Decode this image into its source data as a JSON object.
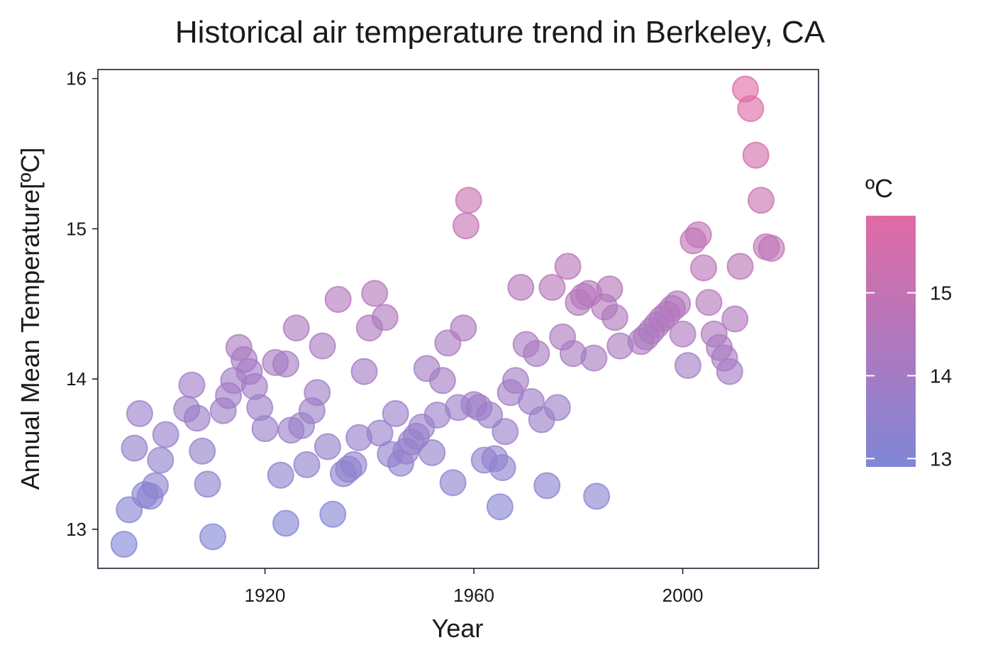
{
  "chart_data": {
    "type": "scatter",
    "title": "Historical air temperature trend in Berkeley, CA",
    "xlabel": "Year",
    "ylabel": "Annual Mean Temperature[ºC]",
    "xlim": [
      1888,
      2026
    ],
    "ylim": [
      12.74,
      16.06
    ],
    "x_ticks": [
      1920,
      1960,
      2000
    ],
    "y_ticks": [
      13,
      14,
      15,
      16
    ],
    "grid": false,
    "color_scale": {
      "title": "ºC",
      "min": 12.9,
      "max": 15.93,
      "low_color": "#7f86d6",
      "high_color": "#e06aa4",
      "ticks": [
        13,
        14,
        15
      ],
      "legend_position": "right"
    },
    "points": [
      {
        "x": 1893,
        "y": 12.9
      },
      {
        "x": 1894,
        "y": 13.13
      },
      {
        "x": 1895,
        "y": 13.54
      },
      {
        "x": 1896,
        "y": 13.77
      },
      {
        "x": 1897,
        "y": 13.23
      },
      {
        "x": 1898,
        "y": 13.22
      },
      {
        "x": 1899,
        "y": 13.29
      },
      {
        "x": 1900,
        "y": 13.46
      },
      {
        "x": 1901,
        "y": 13.63
      },
      {
        "x": 1905,
        "y": 13.8
      },
      {
        "x": 1906,
        "y": 13.96
      },
      {
        "x": 1907,
        "y": 13.74
      },
      {
        "x": 1908,
        "y": 13.52
      },
      {
        "x": 1909,
        "y": 13.3
      },
      {
        "x": 1910,
        "y": 12.95
      },
      {
        "x": 1912,
        "y": 13.79
      },
      {
        "x": 1913,
        "y": 13.89
      },
      {
        "x": 1914,
        "y": 13.99
      },
      {
        "x": 1915,
        "y": 14.21
      },
      {
        "x": 1916,
        "y": 14.13
      },
      {
        "x": 1917,
        "y": 14.05
      },
      {
        "x": 1918,
        "y": 13.95
      },
      {
        "x": 1919,
        "y": 13.81
      },
      {
        "x": 1920,
        "y": 13.67
      },
      {
        "x": 1922,
        "y": 14.11
      },
      {
        "x": 1923,
        "y": 13.36
      },
      {
        "x": 1924,
        "y": 13.04
      },
      {
        "x": 1924,
        "y": 14.1
      },
      {
        "x": 1925,
        "y": 13.66
      },
      {
        "x": 1926,
        "y": 14.34
      },
      {
        "x": 1927,
        "y": 13.69
      },
      {
        "x": 1928,
        "y": 13.43
      },
      {
        "x": 1929,
        "y": 13.79
      },
      {
        "x": 1930,
        "y": 13.91
      },
      {
        "x": 1931,
        "y": 14.22
      },
      {
        "x": 1932,
        "y": 13.55
      },
      {
        "x": 1933,
        "y": 13.1
      },
      {
        "x": 1934,
        "y": 14.53
      },
      {
        "x": 1935,
        "y": 13.37
      },
      {
        "x": 1936,
        "y": 13.4
      },
      {
        "x": 1937,
        "y": 13.43
      },
      {
        "x": 1938,
        "y": 13.61
      },
      {
        "x": 1939,
        "y": 14.05
      },
      {
        "x": 1940,
        "y": 14.34
      },
      {
        "x": 1941,
        "y": 14.57
      },
      {
        "x": 1942,
        "y": 13.64
      },
      {
        "x": 1943,
        "y": 14.41
      },
      {
        "x": 1944,
        "y": 13.5
      },
      {
        "x": 1945,
        "y": 13.77
      },
      {
        "x": 1946,
        "y": 13.44
      },
      {
        "x": 1947,
        "y": 13.52
      },
      {
        "x": 1948,
        "y": 13.58
      },
      {
        "x": 1949,
        "y": 13.62
      },
      {
        "x": 1950,
        "y": 13.68
      },
      {
        "x": 1951,
        "y": 14.07
      },
      {
        "x": 1952,
        "y": 13.51
      },
      {
        "x": 1953,
        "y": 13.76
      },
      {
        "x": 1954,
        "y": 13.99
      },
      {
        "x": 1955,
        "y": 14.24
      },
      {
        "x": 1956,
        "y": 13.31
      },
      {
        "x": 1957,
        "y": 13.81
      },
      {
        "x": 1958,
        "y": 14.34
      },
      {
        "x": 1958.5,
        "y": 15.02
      },
      {
        "x": 1959,
        "y": 15.19
      },
      {
        "x": 1960,
        "y": 13.83
      },
      {
        "x": 1961,
        "y": 13.81
      },
      {
        "x": 1962,
        "y": 13.46
      },
      {
        "x": 1963,
        "y": 13.76
      },
      {
        "x": 1964,
        "y": 13.47
      },
      {
        "x": 1965,
        "y": 13.15
      },
      {
        "x": 1965.5,
        "y": 13.41
      },
      {
        "x": 1966,
        "y": 13.65
      },
      {
        "x": 1967,
        "y": 13.91
      },
      {
        "x": 1968,
        "y": 13.99
      },
      {
        "x": 1969,
        "y": 14.61
      },
      {
        "x": 1970,
        "y": 14.23
      },
      {
        "x": 1971,
        "y": 13.85
      },
      {
        "x": 1972,
        "y": 14.17
      },
      {
        "x": 1973,
        "y": 13.73
      },
      {
        "x": 1974,
        "y": 13.29
      },
      {
        "x": 1975,
        "y": 14.61
      },
      {
        "x": 1976,
        "y": 13.81
      },
      {
        "x": 1977,
        "y": 14.28
      },
      {
        "x": 1978,
        "y": 14.75
      },
      {
        "x": 1979,
        "y": 14.17
      },
      {
        "x": 1980,
        "y": 14.51
      },
      {
        "x": 1981,
        "y": 14.55
      },
      {
        "x": 1982,
        "y": 14.57
      },
      {
        "x": 1983,
        "y": 14.14
      },
      {
        "x": 1983.5,
        "y": 13.22
      },
      {
        "x": 1985,
        "y": 14.48
      },
      {
        "x": 1986,
        "y": 14.6
      },
      {
        "x": 1987,
        "y": 14.41
      },
      {
        "x": 1988,
        "y": 14.22
      },
      {
        "x": 1992,
        "y": 14.25
      },
      {
        "x": 1993,
        "y": 14.28
      },
      {
        "x": 1994,
        "y": 14.32
      },
      {
        "x": 1995,
        "y": 14.36
      },
      {
        "x": 1996,
        "y": 14.4
      },
      {
        "x": 1997,
        "y": 14.43
      },
      {
        "x": 1998,
        "y": 14.47
      },
      {
        "x": 1999,
        "y": 14.5
      },
      {
        "x": 2000,
        "y": 14.3
      },
      {
        "x": 2001,
        "y": 14.09
      },
      {
        "x": 2002,
        "y": 14.92
      },
      {
        "x": 2003,
        "y": 14.96
      },
      {
        "x": 2004,
        "y": 14.74
      },
      {
        "x": 2005,
        "y": 14.51
      },
      {
        "x": 2006,
        "y": 14.3
      },
      {
        "x": 2007,
        "y": 14.21
      },
      {
        "x": 2008,
        "y": 14.14
      },
      {
        "x": 2009,
        "y": 14.05
      },
      {
        "x": 2010,
        "y": 14.4
      },
      {
        "x": 2011,
        "y": 14.75
      },
      {
        "x": 2012,
        "y": 15.93
      },
      {
        "x": 2013,
        "y": 15.8
      },
      {
        "x": 2014,
        "y": 15.49
      },
      {
        "x": 2015,
        "y": 15.19
      },
      {
        "x": 2016,
        "y": 14.88
      },
      {
        "x": 2017,
        "y": 14.87
      }
    ]
  }
}
